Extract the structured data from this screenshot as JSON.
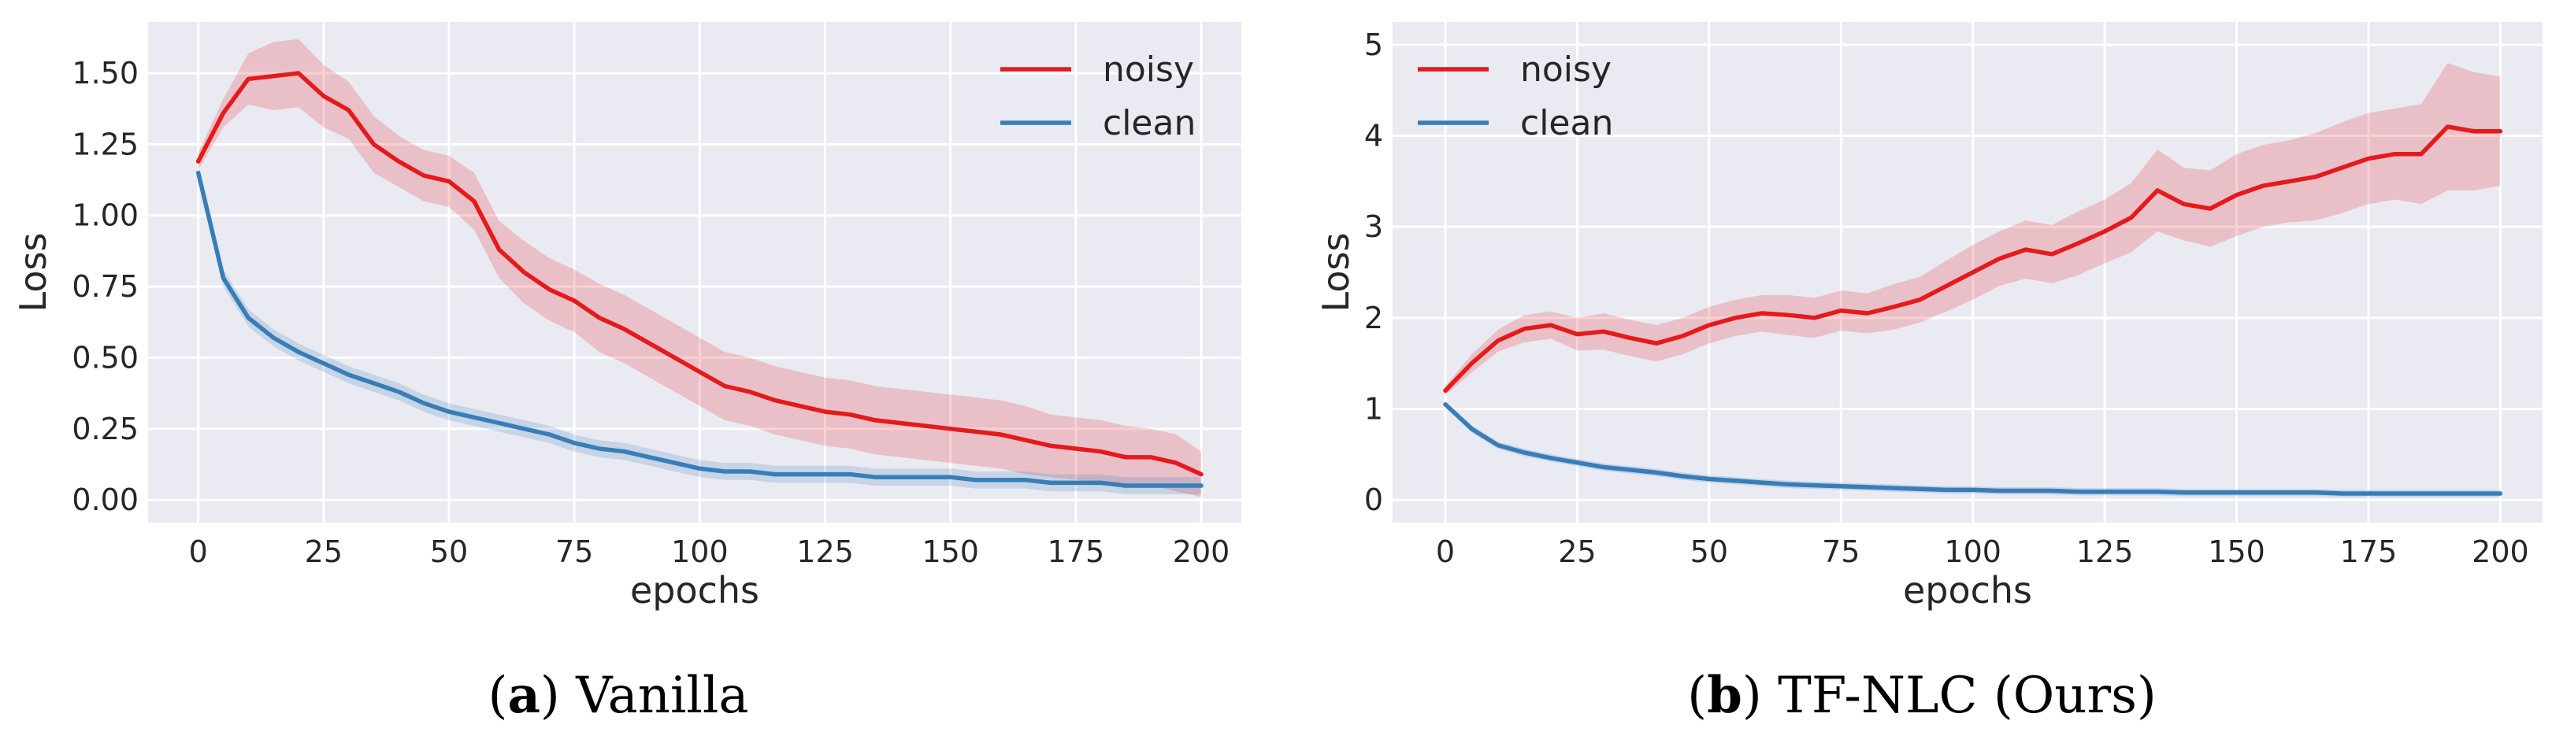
{
  "colors": {
    "noisy": "#e41a1c",
    "clean": "#377eb8",
    "panel_bg": "#eaeaf2",
    "grid": "#ffffff"
  },
  "chart_data": [
    {
      "type": "line",
      "caption_letter": "a",
      "caption_text": "Vanilla",
      "xlabel": "epochs",
      "ylabel": "Loss",
      "xlim": [
        -10,
        208
      ],
      "ylim": [
        -0.08,
        1.68
      ],
      "xticks": [
        0,
        25,
        50,
        75,
        100,
        125,
        150,
        175,
        200
      ],
      "xtick_labels": [
        "0",
        "25",
        "50",
        "75",
        "100",
        "125",
        "150",
        "175",
        "200"
      ],
      "yticks": [
        0.0,
        0.25,
        0.5,
        0.75,
        1.0,
        1.25,
        1.5
      ],
      "ytick_labels": [
        "0.00",
        "0.25",
        "0.50",
        "0.75",
        "1.00",
        "1.25",
        "1.50"
      ],
      "grid": true,
      "legend_position": "top-right",
      "series": [
        {
          "name": "noisy",
          "color": "#e41a1c",
          "x": [
            0,
            5,
            10,
            15,
            20,
            25,
            30,
            35,
            40,
            45,
            50,
            55,
            60,
            65,
            70,
            75,
            80,
            85,
            90,
            95,
            100,
            105,
            110,
            115,
            120,
            125,
            130,
            135,
            140,
            145,
            150,
            155,
            160,
            165,
            170,
            175,
            180,
            185,
            190,
            195,
            200
          ],
          "y": [
            1.19,
            1.36,
            1.48,
            1.49,
            1.5,
            1.42,
            1.37,
            1.25,
            1.19,
            1.14,
            1.12,
            1.05,
            0.88,
            0.8,
            0.74,
            0.7,
            0.64,
            0.6,
            0.55,
            0.5,
            0.45,
            0.4,
            0.38,
            0.35,
            0.33,
            0.31,
            0.3,
            0.28,
            0.27,
            0.26,
            0.25,
            0.24,
            0.23,
            0.21,
            0.19,
            0.18,
            0.17,
            0.15,
            0.15,
            0.13,
            0.09
          ],
          "band": [
            0.03,
            0.05,
            0.09,
            0.12,
            0.12,
            0.11,
            0.1,
            0.1,
            0.09,
            0.09,
            0.09,
            0.1,
            0.1,
            0.11,
            0.11,
            0.11,
            0.12,
            0.12,
            0.12,
            0.12,
            0.12,
            0.12,
            0.12,
            0.12,
            0.12,
            0.12,
            0.12,
            0.12,
            0.12,
            0.12,
            0.12,
            0.12,
            0.12,
            0.12,
            0.11,
            0.11,
            0.11,
            0.11,
            0.1,
            0.1,
            0.08
          ]
        },
        {
          "name": "clean",
          "color": "#377eb8",
          "x": [
            0,
            5,
            10,
            15,
            20,
            25,
            30,
            35,
            40,
            45,
            50,
            55,
            60,
            65,
            70,
            75,
            80,
            85,
            90,
            95,
            100,
            105,
            110,
            115,
            120,
            125,
            130,
            135,
            140,
            145,
            150,
            155,
            160,
            165,
            170,
            175,
            180,
            185,
            190,
            195,
            200
          ],
          "y": [
            1.15,
            0.78,
            0.64,
            0.57,
            0.52,
            0.48,
            0.44,
            0.41,
            0.38,
            0.34,
            0.31,
            0.29,
            0.27,
            0.25,
            0.23,
            0.2,
            0.18,
            0.17,
            0.15,
            0.13,
            0.11,
            0.1,
            0.1,
            0.09,
            0.09,
            0.09,
            0.09,
            0.08,
            0.08,
            0.08,
            0.08,
            0.07,
            0.07,
            0.07,
            0.06,
            0.06,
            0.06,
            0.05,
            0.05,
            0.05,
            0.05
          ],
          "band": [
            0.02,
            0.03,
            0.03,
            0.03,
            0.03,
            0.03,
            0.03,
            0.03,
            0.03,
            0.03,
            0.03,
            0.03,
            0.03,
            0.03,
            0.03,
            0.03,
            0.03,
            0.03,
            0.03,
            0.03,
            0.03,
            0.03,
            0.03,
            0.03,
            0.03,
            0.03,
            0.03,
            0.03,
            0.03,
            0.03,
            0.03,
            0.03,
            0.03,
            0.03,
            0.03,
            0.03,
            0.03,
            0.03,
            0.03,
            0.03,
            0.03
          ]
        }
      ]
    },
    {
      "type": "line",
      "caption_letter": "b",
      "caption_text": "TF-NLC (Ours)",
      "xlabel": "epochs",
      "ylabel": "Loss",
      "xlim": [
        -10,
        208
      ],
      "ylim": [
        -0.25,
        5.25
      ],
      "xticks": [
        0,
        25,
        50,
        75,
        100,
        125,
        150,
        175,
        200
      ],
      "xtick_labels": [
        "0",
        "25",
        "50",
        "75",
        "100",
        "125",
        "150",
        "175",
        "200"
      ],
      "yticks": [
        0,
        1,
        2,
        3,
        4,
        5
      ],
      "ytick_labels": [
        "0",
        "1",
        "2",
        "3",
        "4",
        "5"
      ],
      "grid": true,
      "legend_position": "top-left",
      "series": [
        {
          "name": "noisy",
          "color": "#e41a1c",
          "x": [
            0,
            5,
            10,
            15,
            20,
            25,
            30,
            35,
            40,
            45,
            50,
            55,
            60,
            65,
            70,
            75,
            80,
            85,
            90,
            95,
            100,
            105,
            110,
            115,
            120,
            125,
            130,
            135,
            140,
            145,
            150,
            155,
            160,
            165,
            170,
            175,
            180,
            185,
            190,
            195,
            200
          ],
          "y": [
            1.2,
            1.5,
            1.75,
            1.88,
            1.92,
            1.82,
            1.85,
            1.78,
            1.72,
            1.8,
            1.92,
            2.0,
            2.05,
            2.03,
            2.0,
            2.08,
            2.05,
            2.12,
            2.2,
            2.35,
            2.5,
            2.65,
            2.75,
            2.7,
            2.82,
            2.95,
            3.1,
            3.4,
            3.25,
            3.2,
            3.35,
            3.45,
            3.5,
            3.55,
            3.65,
            3.75,
            3.8,
            3.8,
            4.1,
            4.05,
            4.05
          ],
          "band": [
            0.05,
            0.1,
            0.12,
            0.15,
            0.15,
            0.18,
            0.2,
            0.2,
            0.2,
            0.2,
            0.2,
            0.2,
            0.2,
            0.22,
            0.22,
            0.22,
            0.22,
            0.25,
            0.25,
            0.28,
            0.3,
            0.3,
            0.32,
            0.32,
            0.35,
            0.35,
            0.38,
            0.45,
            0.4,
            0.42,
            0.45,
            0.45,
            0.45,
            0.48,
            0.5,
            0.5,
            0.5,
            0.55,
            0.7,
            0.65,
            0.6
          ]
        },
        {
          "name": "clean",
          "color": "#377eb8",
          "x": [
            0,
            5,
            10,
            15,
            20,
            25,
            30,
            35,
            40,
            45,
            50,
            55,
            60,
            65,
            70,
            75,
            80,
            85,
            90,
            95,
            100,
            105,
            110,
            115,
            120,
            125,
            130,
            135,
            140,
            145,
            150,
            155,
            160,
            165,
            170,
            175,
            180,
            185,
            190,
            195,
            200
          ],
          "y": [
            1.05,
            0.78,
            0.6,
            0.52,
            0.46,
            0.41,
            0.36,
            0.33,
            0.3,
            0.26,
            0.23,
            0.21,
            0.19,
            0.17,
            0.16,
            0.15,
            0.14,
            0.13,
            0.12,
            0.11,
            0.11,
            0.1,
            0.1,
            0.1,
            0.09,
            0.09,
            0.09,
            0.09,
            0.08,
            0.08,
            0.08,
            0.08,
            0.08,
            0.08,
            0.07,
            0.07,
            0.07,
            0.07,
            0.07,
            0.07,
            0.07
          ],
          "band": [
            0.03,
            0.04,
            0.04,
            0.04,
            0.04,
            0.04,
            0.04,
            0.04,
            0.04,
            0.04,
            0.04,
            0.04,
            0.04,
            0.04,
            0.04,
            0.04,
            0.04,
            0.04,
            0.04,
            0.04,
            0.04,
            0.04,
            0.04,
            0.04,
            0.04,
            0.04,
            0.04,
            0.04,
            0.04,
            0.04,
            0.04,
            0.04,
            0.04,
            0.04,
            0.04,
            0.04,
            0.04,
            0.04,
            0.04,
            0.04,
            0.04
          ]
        }
      ]
    }
  ]
}
